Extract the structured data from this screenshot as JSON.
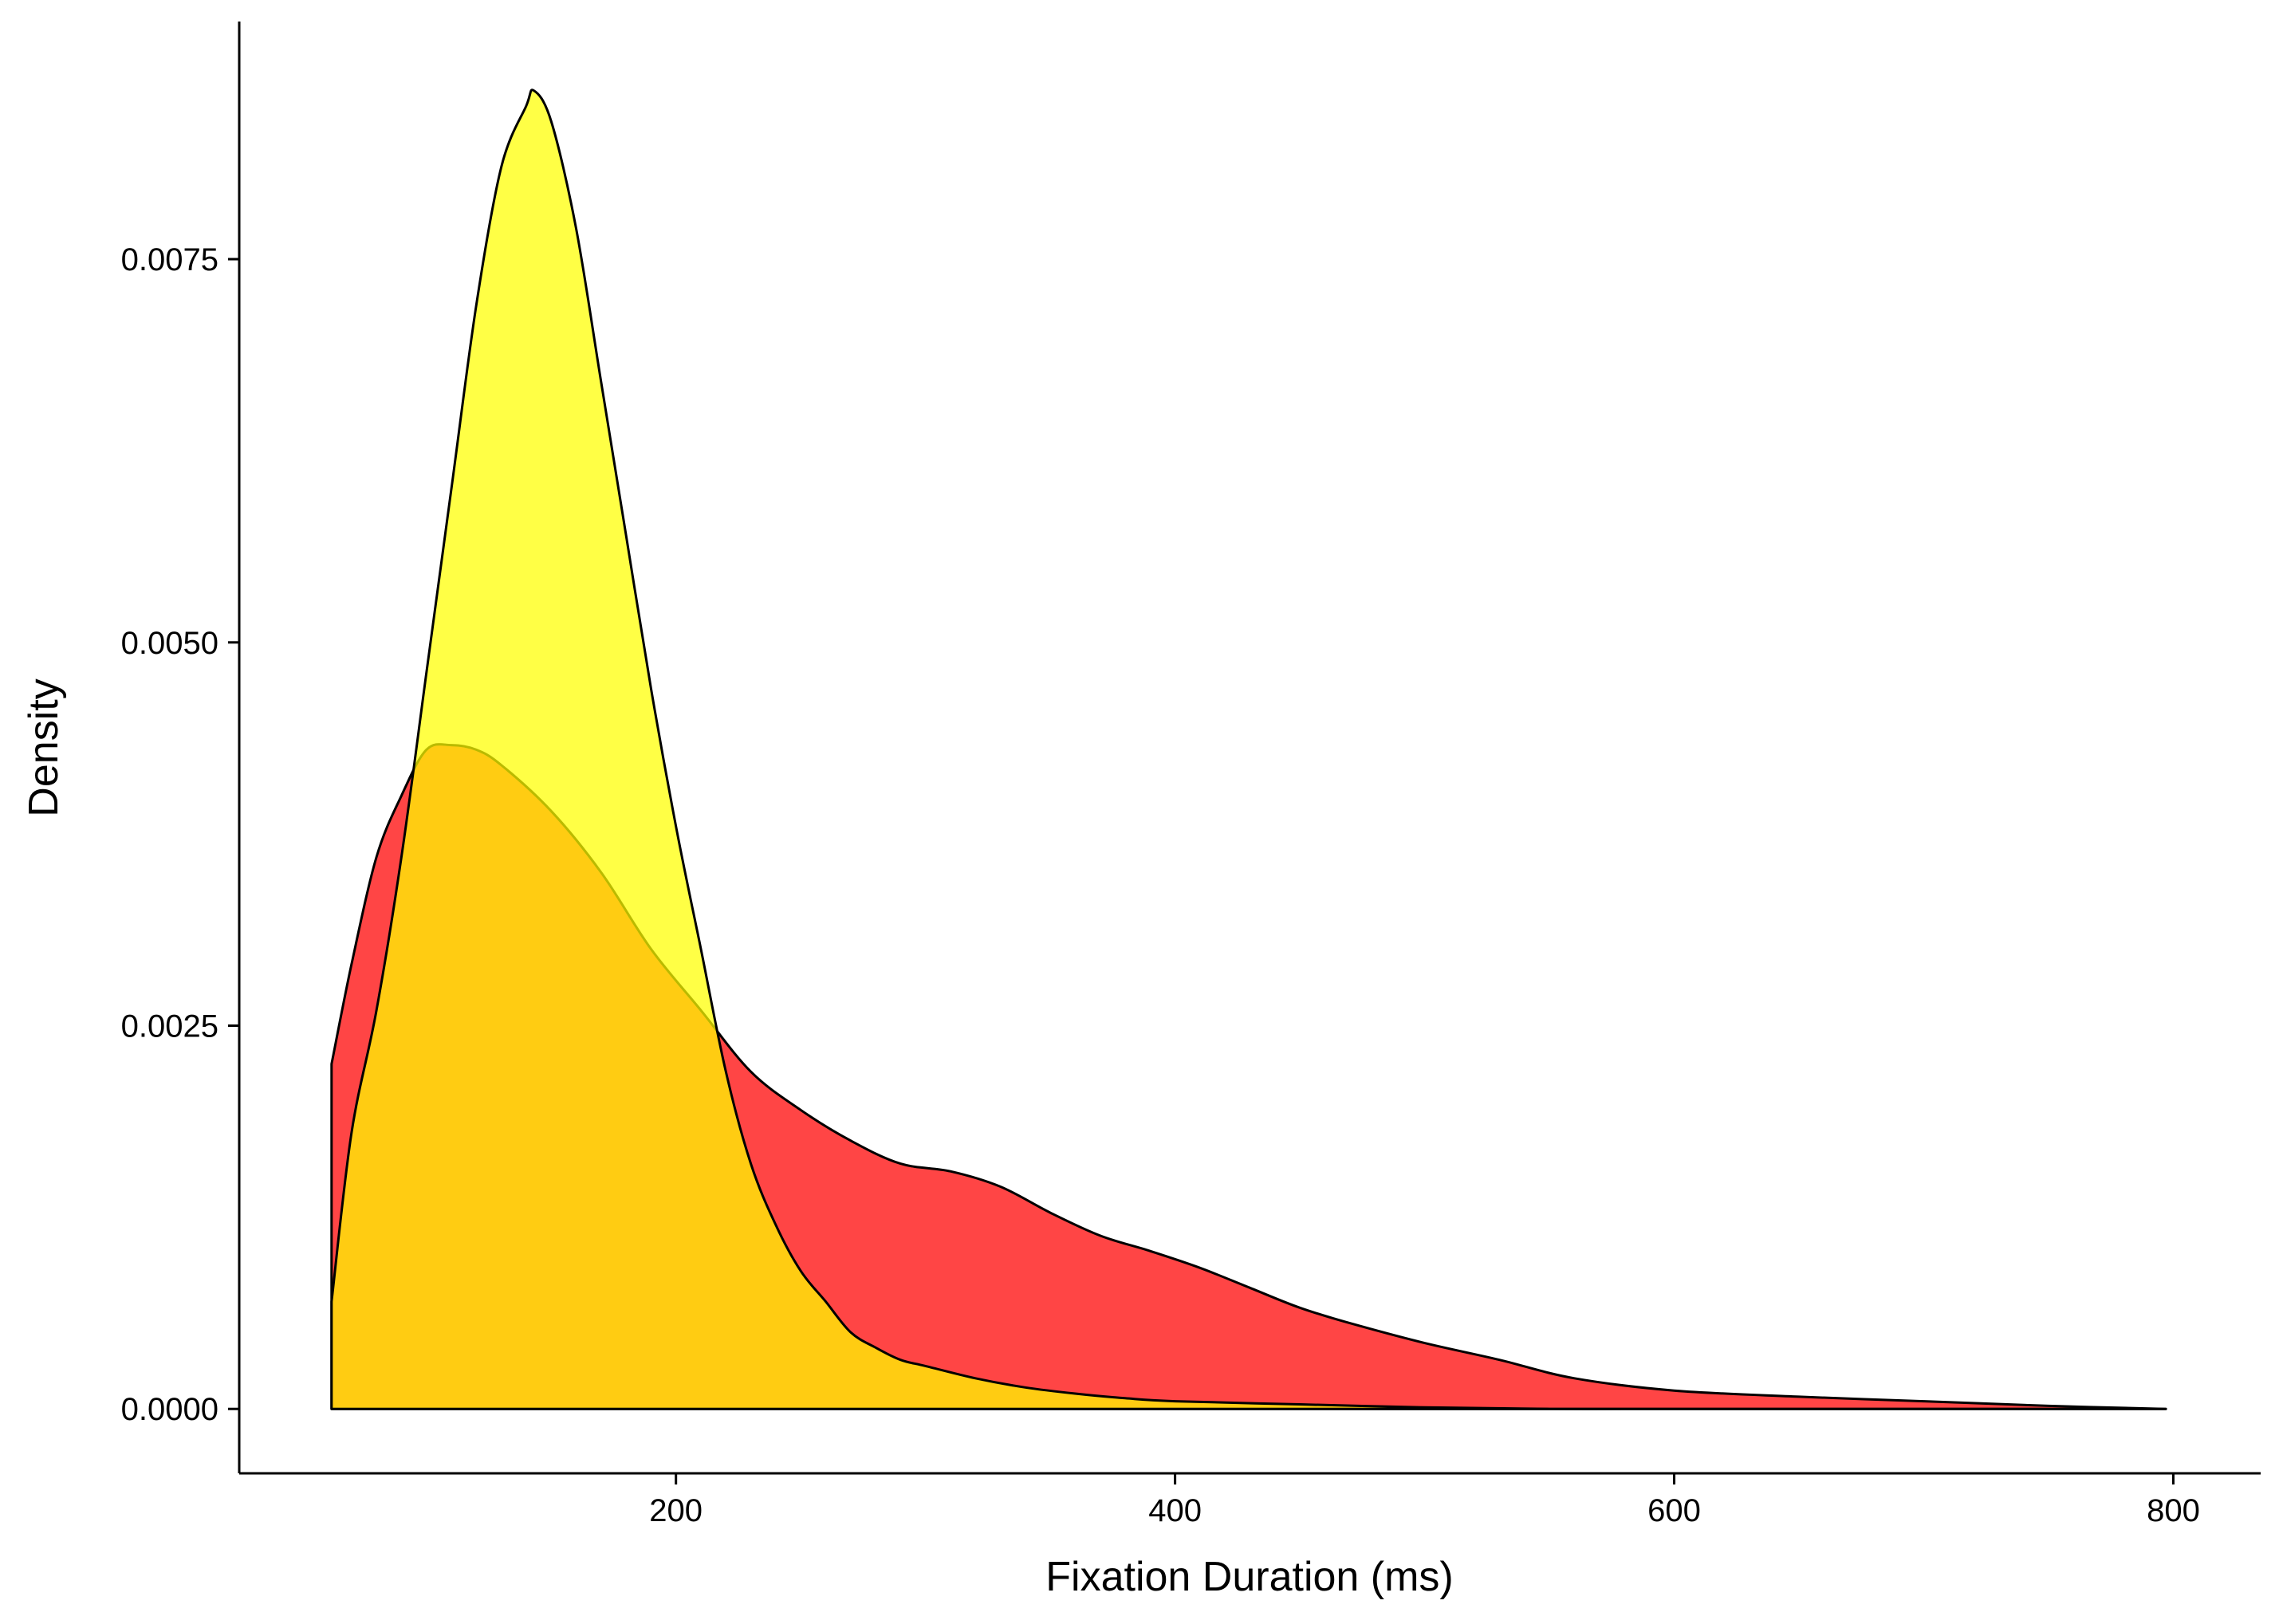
{
  "chart_data": {
    "type": "area",
    "title": "",
    "xlabel": "Fixation Duration (ms)",
    "ylabel": "Density",
    "xlim": [
      25,
      835
    ],
    "ylim": [
      -0.00042,
      0.00905
    ],
    "x_ticks": [
      200,
      400,
      600,
      800
    ],
    "x_tick_labels": [
      "200",
      "400",
      "600",
      "800"
    ],
    "y_ticks": [
      0.0,
      0.0025,
      0.005,
      0.0075
    ],
    "y_tick_labels": [
      "0.0000",
      "0.0025",
      "0.0050",
      "0.0075"
    ],
    "grid": false,
    "legend": "none",
    "series": [
      {
        "color": "#ff0000",
        "opacity": 0.73,
        "x": [
          62,
          70,
          80,
          90,
          100,
          110,
          120,
          130,
          150,
          170,
          190,
          210,
          230,
          250,
          270,
          290,
          310,
          330,
          350,
          370,
          390,
          410,
          430,
          450,
          470,
          500,
          530,
          560,
          600,
          650,
          700,
          750,
          797
        ],
        "y": [
          0.00225,
          0.0029,
          0.0036,
          0.004,
          0.0043,
          0.00433,
          0.0043,
          0.0042,
          0.0039,
          0.0035,
          0.003,
          0.0026,
          0.0022,
          0.00195,
          0.00175,
          0.0016,
          0.00155,
          0.00145,
          0.00128,
          0.00113,
          0.00103,
          0.00092,
          0.00079,
          0.00066,
          0.00056,
          0.00043,
          0.00032,
          0.0002,
          0.00012,
          8e-05,
          5e-05,
          2e-05,
          0.0
        ]
      },
      {
        "color": "#ffff00",
        "opacity": 0.73,
        "x": [
          62,
          70,
          80,
          90,
          100,
          110,
          120,
          130,
          140,
          143,
          150,
          160,
          170,
          180,
          190,
          200,
          210,
          220,
          230,
          240,
          250,
          260,
          270,
          280,
          290,
          300,
          320,
          340,
          360,
          380,
          400,
          450,
          500,
          550,
          600,
          700,
          797
        ],
        "y": [
          0.0007,
          0.0018,
          0.0026,
          0.0036,
          0.0048,
          0.006,
          0.0072,
          0.0081,
          0.0085,
          0.0086,
          0.0084,
          0.0077,
          0.0067,
          0.0057,
          0.0047,
          0.0038,
          0.003,
          0.0022,
          0.0016,
          0.0012,
          0.0009,
          0.0007,
          0.0005,
          0.0004,
          0.00032,
          0.00028,
          0.0002,
          0.00014,
          0.0001,
          7e-05,
          5e-05,
          3e-05,
          1e-05,
          0.0,
          0.0,
          0.0,
          0.0
        ]
      }
    ]
  }
}
